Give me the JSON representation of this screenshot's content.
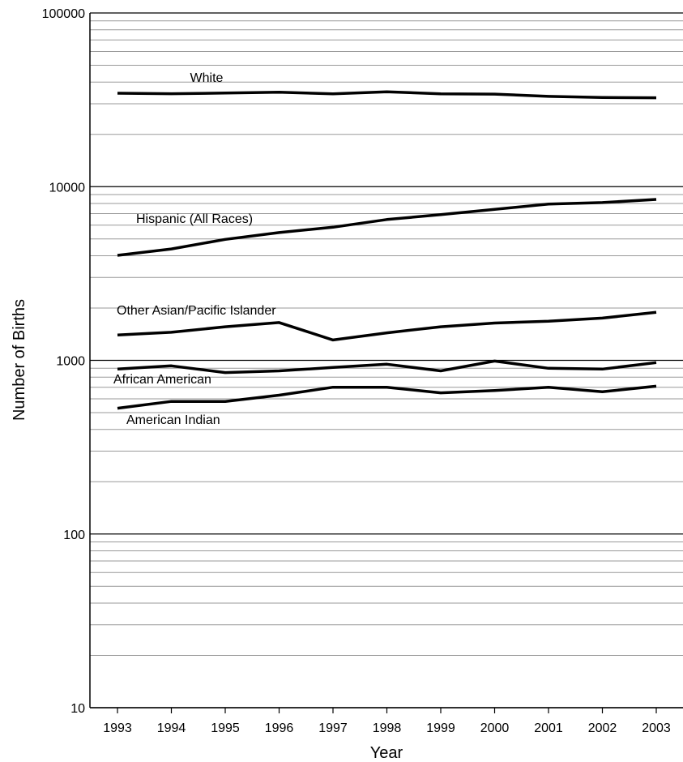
{
  "chart_data": {
    "type": "line",
    "title": "",
    "xlabel": "Year",
    "ylabel": "Number of Births",
    "y_scale": "log",
    "ylim": [
      10,
      100000
    ],
    "y_ticks": [
      "10",
      "100",
      "1000",
      "10000",
      "100000"
    ],
    "x": [
      "1993",
      "1994",
      "1995",
      "1996",
      "1997",
      "1998",
      "1999",
      "2000",
      "2001",
      "2002",
      "2003"
    ],
    "grid": true,
    "legend": "inline labels next to lines",
    "line_color": "#000000",
    "series": [
      {
        "name": "White",
        "values": [
          34500,
          34300,
          34600,
          35000,
          34200,
          35200,
          34200,
          34100,
          33100,
          32600,
          32500
        ]
      },
      {
        "name": "Hispanic (All Races)",
        "values": [
          4020,
          4380,
          4970,
          5440,
          5840,
          6470,
          6900,
          7400,
          7940,
          8100,
          8440
        ]
      },
      {
        "name": "Other Asian/Pacific Islander",
        "values": [
          1400,
          1450,
          1560,
          1650,
          1310,
          1440,
          1560,
          1640,
          1680,
          1750,
          1890
        ]
      },
      {
        "name": "African American",
        "values": [
          890,
          930,
          850,
          870,
          910,
          950,
          870,
          990,
          900,
          890,
          970
        ]
      },
      {
        "name": "American Indian",
        "values": [
          530,
          580,
          580,
          630,
          700,
          700,
          650,
          670,
          700,
          660,
          710
        ]
      }
    ]
  }
}
